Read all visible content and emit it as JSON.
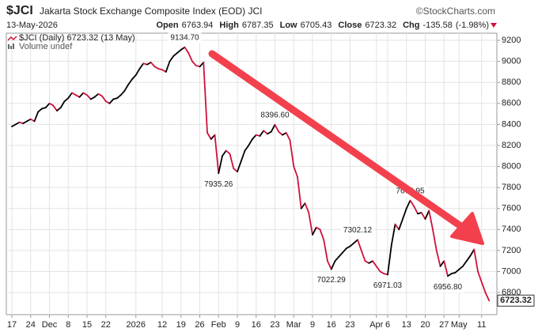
{
  "chart_data": {
    "type": "line",
    "symbol": "$JCI",
    "title": "Jakarta Stock Exchange Composite Index (EOD) JCI",
    "source": "©StockCharts.com",
    "date": "13-May-2026",
    "stats": [
      {
        "label": "Open",
        "value": 6763.94
      },
      {
        "label": "High",
        "value": 6787.35
      },
      {
        "label": "Low",
        "value": 6705.43
      },
      {
        "label": "Close",
        "value": 6723.32
      },
      {
        "label": "Chg",
        "value": -135.58
      }
    ],
    "change_pct": "(-1.98%)",
    "legend_text": "$JCI (Daily) 6723.32 (13 May)",
    "volume_label": "Volume undef",
    "up_color": "#000000",
    "down_color": "#d0103a",
    "grid": true,
    "ylim": [
      6590,
      9268
    ],
    "yticks": [
      6800,
      7000,
      7200,
      7400,
      7600,
      7800,
      8000,
      8200,
      8400,
      8600,
      8800,
      9000,
      9200
    ],
    "categories": [
      "17",
      null,
      null,
      null,
      null,
      "24",
      null,
      null,
      null,
      null,
      "Dec",
      null,
      null,
      null,
      null,
      "8",
      null,
      null,
      null,
      null,
      "15",
      null,
      null,
      null,
      null,
      "22",
      null,
      null,
      null,
      null,
      null,
      null,
      null,
      "2026",
      null,
      null,
      null,
      null,
      null,
      null,
      "12",
      null,
      null,
      null,
      null,
      "19",
      null,
      null,
      null,
      null,
      "26",
      null,
      null,
      null,
      null,
      "Feb",
      null,
      null,
      null,
      null,
      "9",
      null,
      null,
      null,
      null,
      "16",
      null,
      null,
      null,
      null,
      "23",
      null,
      null,
      null,
      null,
      "Mar",
      null,
      null,
      null,
      null,
      "9",
      null,
      null,
      null,
      null,
      "16",
      null,
      null,
      null,
      null,
      "23",
      null,
      null,
      null,
      null,
      null,
      null,
      "Apr",
      null,
      null,
      "6",
      null,
      null,
      null,
      null,
      "13",
      null,
      null,
      null,
      null,
      "20",
      null,
      null,
      null,
      null,
      "27",
      null,
      null,
      null,
      "May",
      null,
      null,
      null,
      null,
      null,
      "11",
      null,
      null
    ],
    "values": [
      8380,
      8400,
      8420,
      8410,
      8430,
      8450,
      8430,
      8520,
      8550,
      8560,
      8600,
      8580,
      8530,
      8560,
      8620,
      8650,
      8700,
      8680,
      8660,
      8700,
      8680,
      8640,
      8660,
      8690,
      8670,
      8620,
      8600,
      8640,
      8650,
      8680,
      8720,
      8780,
      8830,
      8870,
      8930,
      8980,
      8970,
      8990,
      8950,
      8930,
      8920,
      8900,
      9000,
      9050,
      9080,
      9110,
      9134.7,
      9080,
      9000,
      8960,
      8950,
      8990,
      8320,
      8260,
      8300,
      7935.26,
      8100,
      8150,
      8120,
      7980,
      7950,
      8050,
      8150,
      8200,
      8260,
      8300,
      8290,
      8340,
      8310,
      8330,
      8396.6,
      8330,
      8300,
      8320,
      8250,
      8000,
      7900,
      7600,
      7650,
      7560,
      7350,
      7420,
      7400,
      7300,
      7100,
      7022.29,
      7100,
      7140,
      7180,
      7220,
      7240,
      7270,
      7302.12,
      7200,
      7100,
      7080,
      7100,
      7050,
      7000,
      6980,
      6971.03,
      7250,
      7450,
      7400,
      7500,
      7600,
      7675.95,
      7620,
      7550,
      7560,
      7500,
      7580,
      7400,
      7200,
      7050,
      7100,
      6956.8,
      6980,
      6990,
      7020,
      7050,
      7100,
      7150,
      7210,
      7000,
      6900,
      6800,
      6723.32
    ],
    "value_labels": [
      null,
      null,
      null,
      null,
      null,
      null,
      null,
      null,
      null,
      null,
      null,
      null,
      null,
      null,
      null,
      null,
      null,
      null,
      null,
      null,
      null,
      null,
      null,
      null,
      null,
      null,
      null,
      null,
      null,
      null,
      null,
      null,
      null,
      null,
      null,
      null,
      null,
      null,
      null,
      null,
      null,
      null,
      null,
      null,
      null,
      null,
      "9134.70",
      null,
      null,
      null,
      null,
      null,
      null,
      null,
      null,
      "7935.26",
      null,
      null,
      null,
      null,
      null,
      null,
      null,
      null,
      null,
      null,
      null,
      null,
      null,
      null,
      "8396.60",
      null,
      null,
      null,
      null,
      null,
      null,
      null,
      null,
      null,
      null,
      null,
      null,
      null,
      null,
      "7022.29",
      null,
      null,
      null,
      null,
      null,
      null,
      "7302.12",
      null,
      null,
      null,
      null,
      null,
      null,
      null,
      "6971.03",
      null,
      null,
      null,
      null,
      null,
      "7675.95",
      null,
      null,
      null,
      null,
      null,
      null,
      null,
      null,
      null,
      "6956.80",
      null,
      null,
      null,
      null,
      null,
      null,
      null,
      null,
      null,
      null,
      null
    ]
  }
}
